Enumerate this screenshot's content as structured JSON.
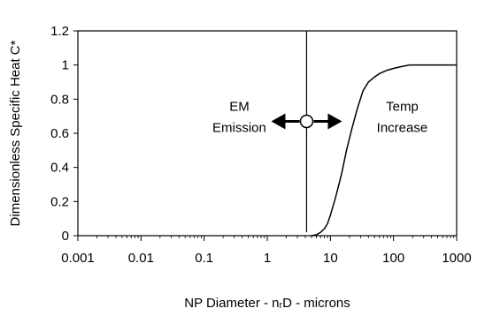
{
  "chart_data": {
    "type": "line",
    "title": "",
    "xlabel": "NP Diameter - nᵣD - microns",
    "ylabel": "Dimensionless Specific Heat C*",
    "x_scale": "log",
    "xlim": [
      0.001,
      1000
    ],
    "ylim": [
      0,
      1.2
    ],
    "grid": false,
    "x_ticks": [
      0.001,
      0.01,
      0.1,
      1,
      10,
      100,
      1000
    ],
    "x_tick_labels": [
      "0.001",
      "0.01",
      "0.1",
      "1",
      "10",
      "100",
      "1000"
    ],
    "y_ticks": [
      0,
      0.2,
      0.4,
      0.6,
      0.8,
      1,
      1.2
    ],
    "y_tick_labels": [
      "0",
      "0.2",
      "0.4",
      "0.6",
      "0.8",
      "1",
      "1.2"
    ],
    "series": [
      {
        "x": [
          5,
          6,
          7,
          8,
          9,
          10,
          12,
          15,
          18,
          22,
          27,
          33,
          40,
          50,
          60,
          80,
          100,
          130,
          180,
          250,
          400,
          700,
          1000
        ],
        "y": [
          0,
          0.005,
          0.02,
          0.04,
          0.07,
          0.12,
          0.22,
          0.36,
          0.5,
          0.63,
          0.75,
          0.85,
          0.9,
          0.93,
          0.95,
          0.97,
          0.98,
          0.99,
          1.0,
          1.0,
          1.0,
          1.0,
          1.0
        ],
        "color": "#000000"
      }
    ],
    "vertical_line": {
      "x": 4.2,
      "y_range": [
        0.02,
        1.2
      ]
    },
    "marker_point": {
      "x": 4.2,
      "y": 0.67
    },
    "annotations": {
      "left": [
        "EM",
        "Emission"
      ],
      "right": [
        "Temp",
        "Increase"
      ]
    }
  }
}
